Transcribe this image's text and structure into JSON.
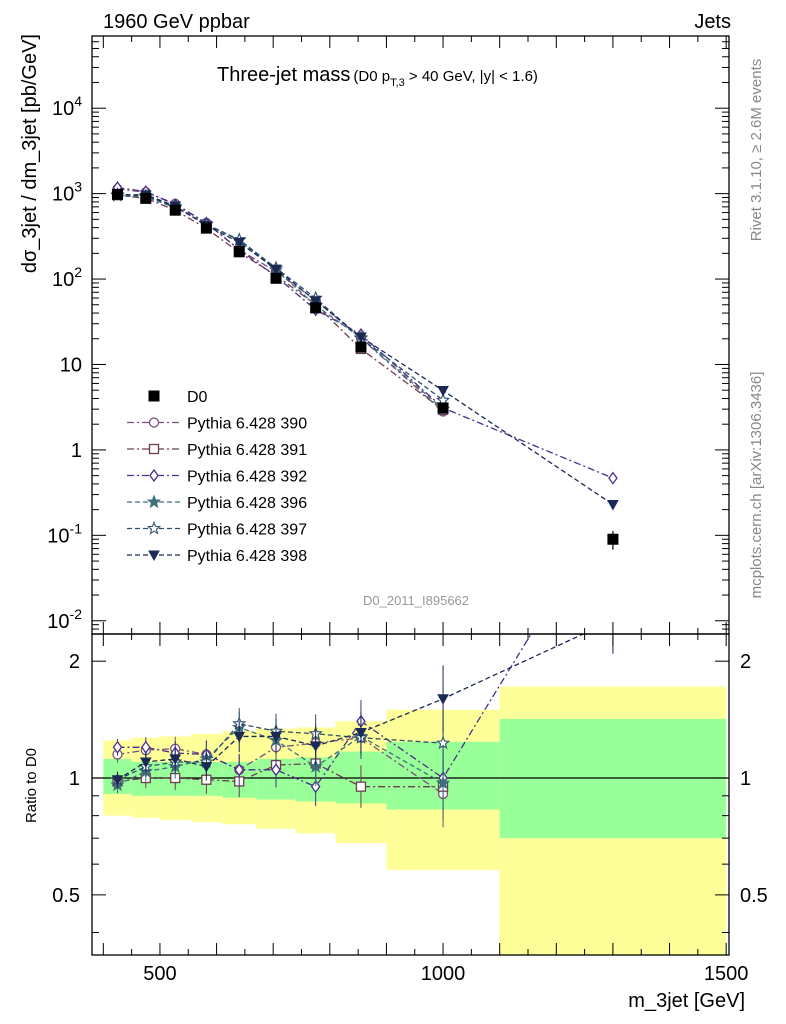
{
  "header": {
    "left": "1960 GeV ppbar",
    "right": "Jets",
    "side_top": "Rivet 3.1.10, ≥ 2.6M events",
    "side_bottom": "mcplots.cern.ch [arXiv:1306.3436]",
    "analysis_id": "D0_2011_I895662"
  },
  "chart_data": {
    "type": "scatter",
    "title_main": "Three-jet mass",
    "title_sub_pre": "(D0 p",
    "title_sub_sub": "T,3",
    "title_sub_post": " > 40 GeV, |y| < 1.6)",
    "xlabel": "m_3jet [GeV]",
    "ylabel": "dσ_3jet / dm_3jet [pb/GeV]",
    "ratio_ylabel": "Ratio to D0",
    "xlim": [
      380,
      1505
    ],
    "ylim": [
      0.007,
      70000
    ],
    "yscale": "log",
    "ratio_ylim": [
      0.35,
      2.35
    ],
    "ratio_yscale": "log",
    "legend_position": "middle-left",
    "x_ticks": [
      {
        "v": 500,
        "label": "500"
      },
      {
        "v": 1000,
        "label": "1000"
      },
      {
        "v": 1500,
        "label": "1500"
      }
    ],
    "y_ticks": [
      {
        "v": 0.01,
        "base": "10",
        "exp": "-2"
      },
      {
        "v": 0.1,
        "base": "10",
        "exp": "-1"
      },
      {
        "v": 1,
        "base": "1",
        "exp": ""
      },
      {
        "v": 10,
        "base": "10",
        "exp": ""
      },
      {
        "v": 100,
        "base": "10",
        "exp": "2"
      },
      {
        "v": 1000,
        "base": "10",
        "exp": "3"
      },
      {
        "v": 10000,
        "base": "10",
        "exp": "4"
      }
    ],
    "ratio_ticks": [
      {
        "v": 0.5,
        "label": "0.5"
      },
      {
        "v": 1,
        "label": "1"
      },
      {
        "v": 2,
        "label": "2"
      }
    ],
    "bins": [
      {
        "lo": 400,
        "hi": 450,
        "x": 425
      },
      {
        "lo": 450,
        "hi": 500,
        "x": 475
      },
      {
        "lo": 500,
        "hi": 555,
        "x": 527
      },
      {
        "lo": 555,
        "hi": 610,
        "x": 582
      },
      {
        "lo": 610,
        "hi": 670,
        "x": 640
      },
      {
        "lo": 670,
        "hi": 740,
        "x": 705
      },
      {
        "lo": 740,
        "hi": 810,
        "x": 775
      },
      {
        "lo": 810,
        "hi": 900,
        "x": 855
      },
      {
        "lo": 900,
        "hi": 1100,
        "x": 1000
      },
      {
        "lo": 1100,
        "hi": 1500,
        "x": 1300
      }
    ],
    "data": {
      "name": "D0",
      "values": [
        980,
        880,
        640,
        395,
        210,
        102,
        46,
        16,
        3.1,
        0.09
      ],
      "err_lo": [
        0,
        0,
        0,
        0,
        0,
        0,
        0,
        0,
        0,
        0.022
      ],
      "err_hi": [
        0,
        0,
        0,
        0,
        0,
        0,
        0,
        0,
        0,
        0.022
      ]
    },
    "bands": {
      "green_lo": [
        0.91,
        0.9,
        0.9,
        0.9,
        0.89,
        0.88,
        0.87,
        0.86,
        0.83,
        0.7
      ],
      "green_hi": [
        1.12,
        1.1,
        1.1,
        1.1,
        1.1,
        1.12,
        1.13,
        1.17,
        1.24,
        1.42
      ],
      "yellow_lo": [
        0.8,
        0.79,
        0.78,
        0.77,
        0.76,
        0.74,
        0.72,
        0.68,
        0.58,
        0.32
      ],
      "yellow_hi": [
        1.25,
        1.27,
        1.28,
        1.3,
        1.32,
        1.34,
        1.35,
        1.4,
        1.5,
        1.72
      ]
    },
    "series": [
      {
        "name": "Pythia 6.428 390",
        "color": "#7a4f7a",
        "marker": "circle",
        "dash": "7,3,2,3",
        "ratio": [
          1.15,
          1.18,
          1.19,
          1.15,
          1.05,
          1.2,
          1.23,
          1.27,
          0.91,
          null
        ]
      },
      {
        "name": "Pythia 6.428 391",
        "color": "#6b3f4f",
        "marker": "square",
        "dash": "7,3,2,3",
        "ratio": [
          0.98,
          1.0,
          1.0,
          0.99,
          0.98,
          1.08,
          1.09,
          0.95,
          0.95,
          null
        ]
      },
      {
        "name": "Pythia 6.428 392",
        "color": "#4b2f8a",
        "marker": "diamond",
        "dash": "7,3,2,3",
        "ratio": [
          1.2,
          1.2,
          1.16,
          1.15,
          1.05,
          1.05,
          0.95,
          1.4,
          1.0,
          5.2
        ]
      },
      {
        "name": "Pythia 6.428 396",
        "color": "#3f6f7a",
        "marker": "star",
        "dash": "5,3",
        "ratio": [
          0.96,
          1.04,
          1.07,
          1.12,
          1.35,
          1.25,
          1.07,
          1.28,
          0.97,
          null
        ]
      },
      {
        "name": "Pythia 6.428 397",
        "color": "#2f4f6f",
        "marker": "star-open",
        "dash": "5,3",
        "ratio": [
          0.99,
          1.07,
          1.1,
          1.1,
          1.38,
          1.32,
          1.3,
          1.27,
          1.23,
          null
        ]
      },
      {
        "name": "Pythia 6.428 398",
        "color": "#1a2a55",
        "marker": "triangle-down",
        "dash": "5,3",
        "ratio": [
          0.99,
          1.1,
          1.12,
          1.07,
          1.28,
          1.28,
          1.21,
          1.31,
          1.6,
          2.55
        ]
      }
    ]
  }
}
